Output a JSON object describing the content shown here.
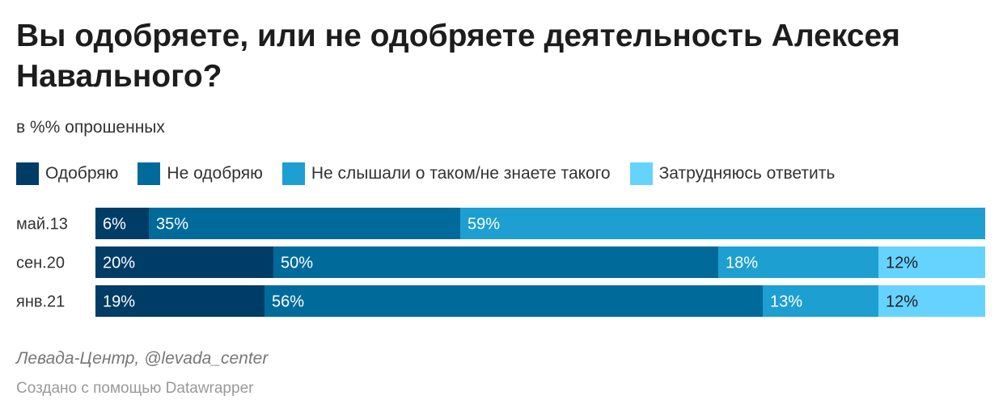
{
  "title": "Вы одобряете, или не одобряете деятельность Алексея Навального?",
  "subtitle": "в %% опрошенных",
  "source": "Левада-Центр, @levada_center",
  "credit": "Создано с помощью Datawrapper",
  "chart_data": {
    "type": "bar",
    "orientation": "horizontal",
    "stacked": true,
    "categories": [
      "май.13",
      "сен.20",
      "янв.21"
    ],
    "series": [
      {
        "name": "Одобряю",
        "color": "#003d66",
        "values": [
          6,
          20,
          19
        ]
      },
      {
        "name": "Не одобряю",
        "color": "#006b9b",
        "values": [
          35,
          50,
          56
        ]
      },
      {
        "name": "Не слышали о таком/не знаете такого",
        "color": "#1d9fd1",
        "values": [
          59,
          18,
          13
        ]
      },
      {
        "name": "Затрудняюсь ответить",
        "color": "#66d3ff",
        "values": [
          null,
          12,
          12
        ]
      }
    ],
    "value_suffix": "%",
    "xlim": [
      0,
      100
    ],
    "legend_position": "top",
    "grid": false
  }
}
